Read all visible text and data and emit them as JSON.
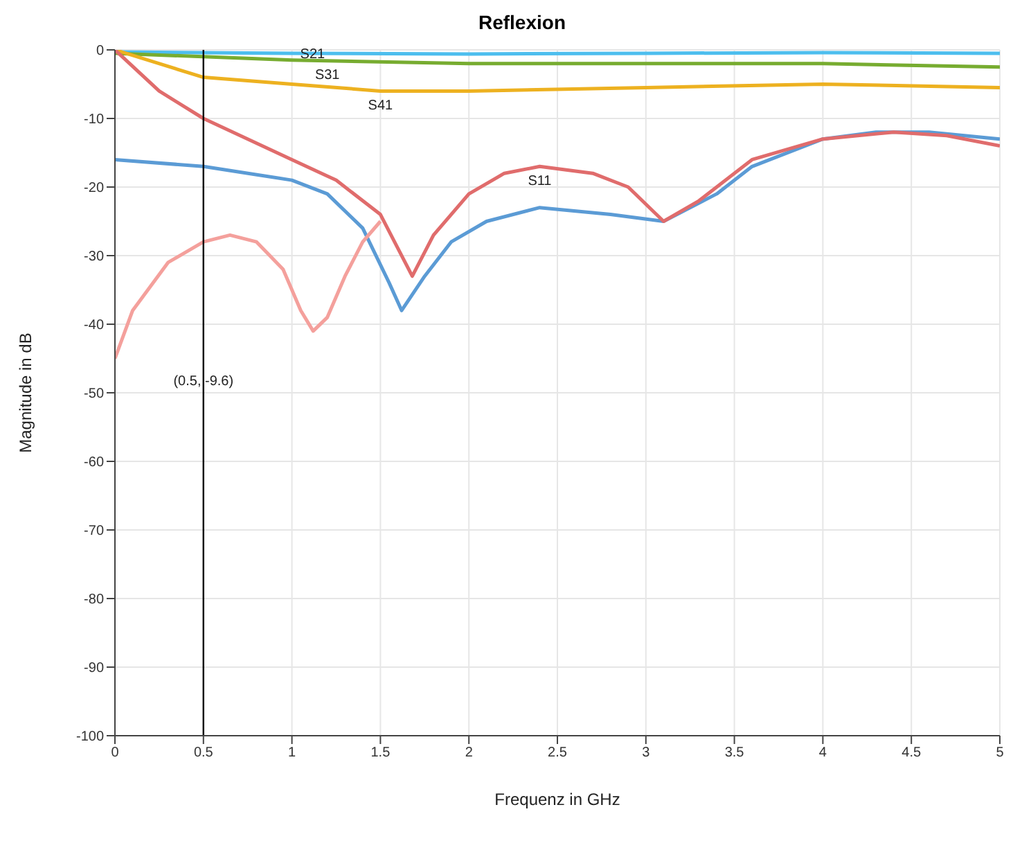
{
  "chart_data": {
    "type": "line",
    "title": "Reflexion",
    "xlabel": "Frequenz in GHz",
    "ylabel": "Magnitude in dB",
    "xlim": [
      0,
      5
    ],
    "xticks": [
      0,
      0.5,
      1,
      1.5,
      2,
      2.5,
      3,
      3.5,
      4,
      4.5,
      5
    ],
    "ylim": [
      -100,
      0
    ],
    "yticks": [
      -100,
      -90,
      -80,
      -70,
      -60,
      -50,
      -40,
      -30,
      -20,
      -10,
      0
    ],
    "grid": true,
    "marker": "none",
    "line_style": "solid",
    "series": [
      {
        "color": "#4dbeee",
        "x": [
          0,
          1,
          2,
          3,
          4,
          5
        ],
        "values": [
          -0.3,
          -0.5,
          -0.6,
          -0.5,
          -0.4,
          -0.5
        ]
      },
      {
        "color": "#77ac30",
        "x": [
          0,
          1,
          2,
          3,
          4,
          5
        ],
        "values": [
          -0.5,
          -1.5,
          -2,
          -2,
          -2,
          -2.5
        ]
      },
      {
        "color": "#edb120",
        "x": [
          0,
          0.5,
          1,
          1.5,
          2,
          3,
          4,
          5
        ],
        "values": [
          0,
          -4,
          -5,
          -6,
          -6,
          -5.5,
          -5,
          -5.5
        ]
      },
      {
        "color": "#5b9bd5",
        "x": [
          0,
          0.5,
          1,
          1.2,
          1.4,
          1.55,
          1.62,
          1.75,
          1.9,
          2.1,
          2.4,
          2.8,
          3.1,
          3.4,
          3.6,
          4,
          4.3,
          4.6,
          5
        ],
        "values": [
          -16,
          -17,
          -19,
          -21,
          -26,
          -34,
          -38,
          -33,
          -28,
          -25,
          -23,
          -24,
          -25,
          -21,
          -17,
          -13,
          -12,
          -12,
          -13
        ]
      },
      {
        "color": "#e06c6c",
        "x": [
          0,
          0.25,
          0.5,
          0.75,
          1,
          1.25,
          1.5,
          1.6,
          1.68,
          1.8,
          2,
          2.2,
          2.4,
          2.7,
          2.9,
          3.1,
          3.3,
          3.6,
          4,
          4.4,
          4.7,
          5
        ],
        "values": [
          0,
          -6,
          -10,
          -13,
          -16,
          -19,
          -24,
          -29,
          -33,
          -27,
          -21,
          -18,
          -17,
          -18,
          -20,
          -25,
          -22,
          -16,
          -13,
          -12,
          -12.5,
          -14
        ]
      },
      {
        "color": "#f4a09c",
        "x": [
          0,
          0.1,
          0.3,
          0.5,
          0.65,
          0.8,
          0.95,
          1.05,
          1.12,
          1.2,
          1.3,
          1.4,
          1.5
        ],
        "values": [
          -45,
          -38,
          -31,
          -28,
          -27,
          -28,
          -32,
          -38,
          -41,
          -39,
          -33,
          -28,
          -25
        ]
      }
    ],
    "ref_lines": [
      {
        "axis": "x",
        "value": 0.5,
        "label": "(0.5, -9.6)",
        "color": "#000000"
      }
    ],
    "annotations": [
      {
        "text": "S21",
        "x": 1,
        "y": -0.5
      },
      {
        "text": "S31",
        "x": 1.2,
        "y": -1.6
      },
      {
        "text": "S41",
        "x": 1.5,
        "y": -6
      },
      {
        "text": "S11",
        "x": 2.4,
        "y": -17
      }
    ]
  }
}
